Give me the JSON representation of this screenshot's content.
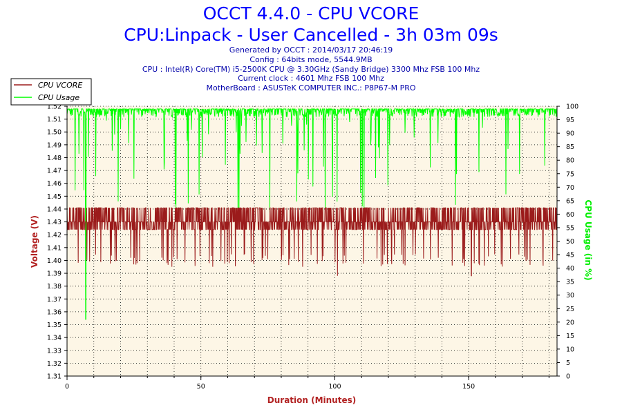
{
  "header": {
    "title": "OCCT 4.4.0 - CPU VCORE",
    "subtitle": "CPU:Linpack - User Cancelled - 3h 03m 09s",
    "generated": "Generated by OCCT : 2014/03/17 20:46:19",
    "config": "Config : 64bits mode, 5544.9MB",
    "cpu": "CPU : Intel(R) Core(TM) i5-2500K CPU @ 3.30GHz (Sandy Bridge) 3300 Mhz FSB 100 Mhz",
    "clock": "Current clock : 4601 Mhz FSB 100 Mhz",
    "motherboard": "MotherBoard : ASUSTeK COMPUTER INC.: P8P67-M PRO"
  },
  "colors": {
    "vcore": "#9b1b1b",
    "usage": "#00ff00",
    "plot_bg": "#fdf6e6",
    "title": "#0000ff",
    "axis_label": "#b22222"
  },
  "chart_data": {
    "type": "line",
    "xlabel": "Duration (Minutes)",
    "ylabel_left": "Voltage (V)",
    "ylabel_right": "CPU Usage (in %)",
    "xlim": [
      0,
      183
    ],
    "ylim_left": [
      1.31,
      1.52
    ],
    "ylim_right": [
      0,
      100
    ],
    "x_ticks": [
      0,
      50,
      100,
      150
    ],
    "y_ticks_left": [
      "1.31",
      "1.32",
      "1.33",
      "1.34",
      "1.35",
      "1.36",
      "1.37",
      "1.38",
      "1.39",
      "1.40",
      "1.41",
      "1.42",
      "1.43",
      "1.44",
      "1.45",
      "1.46",
      "1.47",
      "1.48",
      "1.49",
      "1.50",
      "1.51",
      "1.52"
    ],
    "y_ticks_right": [
      "0",
      "5",
      "10",
      "15",
      "20",
      "25",
      "30",
      "35",
      "40",
      "45",
      "50",
      "55",
      "60",
      "65",
      "70",
      "75",
      "80",
      "85",
      "90",
      "95",
      "100"
    ],
    "grid": true,
    "legend_position": "top-left",
    "series": [
      {
        "name": "CPU VCORE",
        "axis": "left",
        "color": "#9b1b1b",
        "baseline": 1.43,
        "low": 1.424,
        "high": 1.441,
        "dip_min": 1.395,
        "min_points": [
          {
            "x": 101,
            "value": 1.388
          },
          {
            "x": 151,
            "value": 1.388
          }
        ]
      },
      {
        "name": "CPU Usage",
        "axis": "right",
        "color": "#00ff00",
        "baseline": 99,
        "low": 96,
        "dip_range": [
          60,
          95
        ],
        "min_points": [
          {
            "x": 7,
            "value": 21
          }
        ]
      }
    ]
  }
}
